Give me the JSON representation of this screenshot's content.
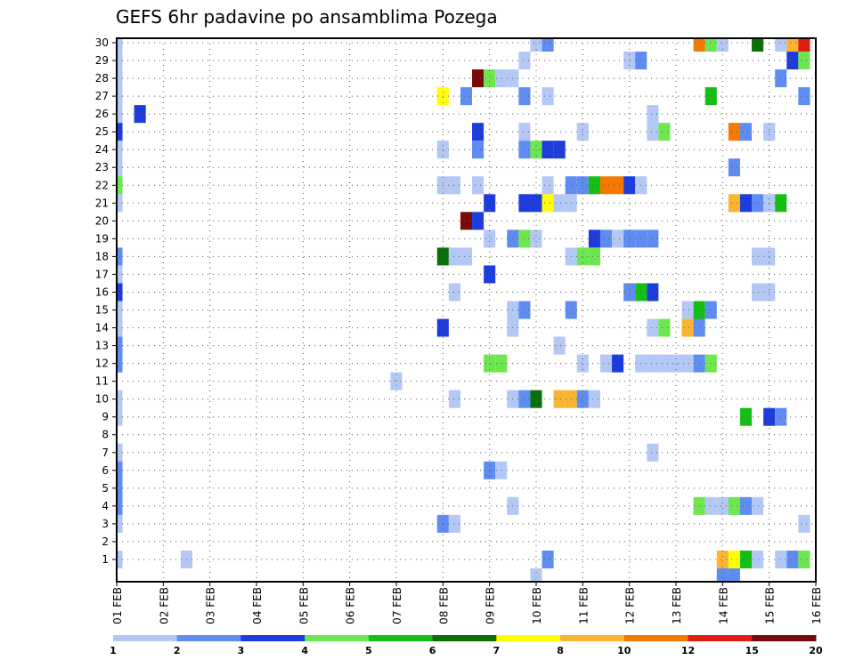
{
  "chart_data": {
    "type": "heatmap",
    "title": "GEFS 6hr padavine po ansamblima Pozega",
    "y_ticks": [
      "1",
      "2",
      "3",
      "4",
      "5",
      "6",
      "7",
      "8",
      "9",
      "10",
      "11",
      "12",
      "13",
      "14",
      "15",
      "16",
      "17",
      "18",
      "19",
      "20",
      "21",
      "22",
      "23",
      "24",
      "25",
      "26",
      "27",
      "28",
      "29",
      "30"
    ],
    "x_ticks": [
      "01 FEB",
      "02 FEB",
      "03 FEB",
      "04 FEB",
      "05 FEB",
      "06 FEB",
      "07 FEB",
      "08 FEB",
      "09 FEB",
      "10 FEB",
      "11 FEB",
      "12 FEB",
      "13 FEB",
      "14 FEB",
      "15 FEB",
      "16 FEB"
    ],
    "x_range_days": [
      1,
      16
    ],
    "y_range_members": [
      0,
      30
    ],
    "time_step_hours": 6,
    "grid": true,
    "colorbar": {
      "tick_labels": [
        "1",
        "2",
        "3",
        "4",
        "5",
        "6",
        "7",
        "8",
        "10",
        "12",
        "15",
        "20"
      ],
      "colors": [
        "#b4c8f5",
        "#5f8cf0",
        "#1e3cdc",
        "#6ee650",
        "#14be14",
        "#0a6e0a",
        "#ffff00",
        "#fab432",
        "#f57800",
        "#e11e14",
        "#780a0a"
      ]
    },
    "legend_position": "bottom",
    "cells": [
      [
        30,
        1.0,
        1
      ],
      [
        29,
        1.0,
        1
      ],
      [
        28,
        1.0,
        1
      ],
      [
        27,
        1.0,
        1
      ],
      [
        26,
        1.0,
        1
      ],
      [
        25,
        1.0,
        3
      ],
      [
        24,
        1.0,
        1
      ],
      [
        23,
        1.0,
        1
      ],
      [
        22,
        1.0,
        4
      ],
      [
        21,
        1.0,
        1
      ],
      [
        18,
        1.0,
        2
      ],
      [
        17,
        1.0,
        1
      ],
      [
        16,
        1.0,
        3
      ],
      [
        15,
        1.0,
        1
      ],
      [
        14,
        1.0,
        1
      ],
      [
        13,
        1.0,
        2
      ],
      [
        12,
        1.0,
        2
      ],
      [
        10,
        1.0,
        1
      ],
      [
        9,
        1.0,
        1
      ],
      [
        7,
        1.0,
        1
      ],
      [
        6,
        1.0,
        2
      ],
      [
        5,
        1.0,
        2
      ],
      [
        4,
        1.0,
        2
      ],
      [
        3,
        1.0,
        1
      ],
      [
        1,
        1.0,
        1
      ],
      [
        26,
        1.5,
        3
      ],
      [
        1,
        2.5,
        1
      ],
      [
        11,
        7.0,
        1
      ],
      [
        30,
        10.0,
        1
      ],
      [
        30,
        10.25,
        2
      ],
      [
        30,
        13.5,
        9
      ],
      [
        30,
        13.75,
        4
      ],
      [
        30,
        14.0,
        1
      ],
      [
        30,
        14.75,
        6
      ],
      [
        30,
        15.25,
        1
      ],
      [
        30,
        15.5,
        8
      ],
      [
        30,
        15.75,
        10
      ],
      [
        29,
        9.75,
        1
      ],
      [
        29,
        12.0,
        1
      ],
      [
        29,
        12.25,
        2
      ],
      [
        29,
        15.5,
        3
      ],
      [
        29,
        15.75,
        4
      ],
      [
        28,
        8.75,
        11
      ],
      [
        28,
        9.0,
        4
      ],
      [
        28,
        9.25,
        1
      ],
      [
        28,
        9.5,
        1
      ],
      [
        28,
        15.25,
        2
      ],
      [
        27,
        8.0,
        7
      ],
      [
        27,
        8.5,
        2
      ],
      [
        27,
        9.75,
        2
      ],
      [
        27,
        10.25,
        1
      ],
      [
        27,
        13.75,
        5
      ],
      [
        27,
        15.75,
        2
      ],
      [
        26,
        12.5,
        1
      ],
      [
        25,
        8.75,
        3
      ],
      [
        25,
        9.75,
        1
      ],
      [
        25,
        11.0,
        1
      ],
      [
        25,
        12.5,
        1
      ],
      [
        25,
        12.75,
        4
      ],
      [
        25,
        14.25,
        9
      ],
      [
        25,
        14.5,
        2
      ],
      [
        25,
        15.0,
        1
      ],
      [
        24,
        8.0,
        1
      ],
      [
        24,
        8.75,
        2
      ],
      [
        24,
        9.75,
        2
      ],
      [
        24,
        10.0,
        4
      ],
      [
        24,
        10.25,
        3
      ],
      [
        24,
        10.5,
        3
      ],
      [
        23,
        14.25,
        2
      ],
      [
        22,
        8.0,
        1
      ],
      [
        22,
        8.25,
        1
      ],
      [
        22,
        8.75,
        1
      ],
      [
        22,
        10.25,
        1
      ],
      [
        22,
        10.75,
        2
      ],
      [
        22,
        11.0,
        2
      ],
      [
        22,
        11.25,
        5
      ],
      [
        22,
        11.5,
        9
      ],
      [
        22,
        11.75,
        9
      ],
      [
        22,
        12.0,
        3
      ],
      [
        22,
        12.25,
        1
      ],
      [
        21,
        9.0,
        3
      ],
      [
        21,
        9.75,
        3
      ],
      [
        21,
        10.0,
        3
      ],
      [
        21,
        10.25,
        7
      ],
      [
        21,
        10.5,
        1
      ],
      [
        21,
        10.75,
        1
      ],
      [
        21,
        14.25,
        8
      ],
      [
        21,
        14.5,
        3
      ],
      [
        21,
        14.75,
        2
      ],
      [
        21,
        15.0,
        1
      ],
      [
        21,
        15.25,
        5
      ],
      [
        20,
        8.5,
        11
      ],
      [
        20,
        8.75,
        3
      ],
      [
        19,
        9.0,
        1
      ],
      [
        19,
        9.5,
        2
      ],
      [
        19,
        9.75,
        4
      ],
      [
        19,
        10.0,
        1
      ],
      [
        19,
        11.25,
        3
      ],
      [
        19,
        11.5,
        2
      ],
      [
        19,
        11.75,
        1
      ],
      [
        19,
        12.0,
        2
      ],
      [
        19,
        12.25,
        2
      ],
      [
        19,
        12.5,
        2
      ],
      [
        18,
        8.0,
        6
      ],
      [
        18,
        8.25,
        1
      ],
      [
        18,
        8.5,
        1
      ],
      [
        18,
        10.75,
        1
      ],
      [
        18,
        11.0,
        4
      ],
      [
        18,
        11.25,
        4
      ],
      [
        18,
        14.75,
        1
      ],
      [
        18,
        15.0,
        1
      ],
      [
        17,
        9.0,
        3
      ],
      [
        16,
        8.25,
        1
      ],
      [
        16,
        12.0,
        2
      ],
      [
        16,
        12.25,
        5
      ],
      [
        16,
        12.5,
        3
      ],
      [
        16,
        14.75,
        1
      ],
      [
        16,
        15.0,
        1
      ],
      [
        15,
        9.5,
        1
      ],
      [
        15,
        9.75,
        2
      ],
      [
        15,
        10.75,
        2
      ],
      [
        15,
        13.25,
        1
      ],
      [
        15,
        13.5,
        5
      ],
      [
        15,
        13.75,
        2
      ],
      [
        14,
        8.0,
        3
      ],
      [
        14,
        9.5,
        1
      ],
      [
        14,
        12.5,
        1
      ],
      [
        14,
        12.75,
        4
      ],
      [
        14,
        13.25,
        8
      ],
      [
        14,
        13.5,
        2
      ],
      [
        13,
        10.5,
        1
      ],
      [
        12,
        9.0,
        4
      ],
      [
        12,
        9.25,
        4
      ],
      [
        12,
        11.0,
        1
      ],
      [
        12,
        11.5,
        1
      ],
      [
        12,
        11.75,
        3
      ],
      [
        12,
        12.25,
        1
      ],
      [
        12,
        12.5,
        1
      ],
      [
        12,
        12.75,
        1
      ],
      [
        12,
        13.0,
        1
      ],
      [
        12,
        13.25,
        1
      ],
      [
        12,
        13.5,
        2
      ],
      [
        12,
        13.75,
        4
      ],
      [
        10,
        8.25,
        1
      ],
      [
        10,
        9.5,
        1
      ],
      [
        10,
        9.75,
        2
      ],
      [
        10,
        10.0,
        6
      ],
      [
        10,
        10.5,
        8
      ],
      [
        10,
        10.75,
        8
      ],
      [
        10,
        11.0,
        2
      ],
      [
        10,
        11.25,
        1
      ],
      [
        9,
        14.5,
        5
      ],
      [
        9,
        15.0,
        3
      ],
      [
        9,
        15.25,
        2
      ],
      [
        7,
        12.5,
        1
      ],
      [
        6,
        9.0,
        2
      ],
      [
        6,
        9.25,
        1
      ],
      [
        4,
        9.5,
        1
      ],
      [
        4,
        13.5,
        4
      ],
      [
        4,
        13.75,
        1
      ],
      [
        4,
        14.0,
        1
      ],
      [
        4,
        14.25,
        4
      ],
      [
        4,
        14.5,
        2
      ],
      [
        4,
        14.75,
        1
      ],
      [
        3,
        8.0,
        2
      ],
      [
        3,
        8.25,
        1
      ],
      [
        3,
        15.75,
        1
      ],
      [
        1,
        10.25,
        2
      ],
      [
        1,
        14.0,
        8
      ],
      [
        1,
        14.25,
        7
      ],
      [
        1,
        14.5,
        5
      ],
      [
        1,
        14.75,
        1
      ],
      [
        1,
        15.25,
        1
      ],
      [
        1,
        15.5,
        2
      ],
      [
        1,
        15.75,
        4
      ],
      [
        0,
        10.0,
        1
      ],
      [
        0,
        14.0,
        2
      ],
      [
        0,
        14.25,
        2
      ]
    ]
  }
}
